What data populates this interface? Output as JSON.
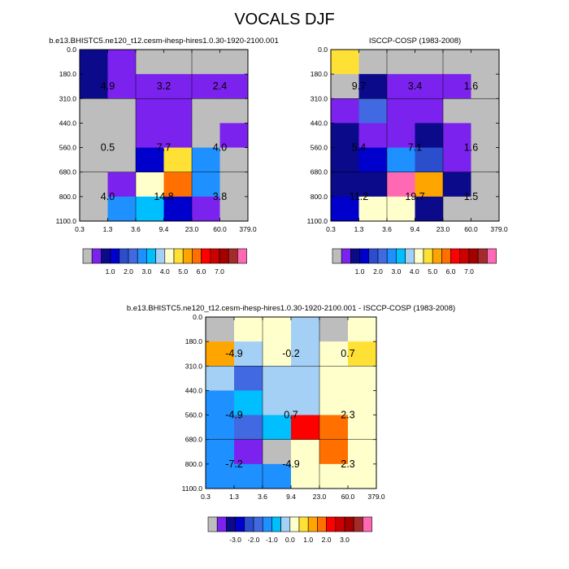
{
  "title": "VOCALS DJF",
  "colors": {
    "abs": [
      "#bdbdbd",
      "#7b22ee",
      "#0a0a8a",
      "#0000cd",
      "#2b4fcc",
      "#4169e1",
      "#1e90ff",
      "#00bfff",
      "#a4d0f5",
      "#ffffcc",
      "#ffe135",
      "#ffa500",
      "#ff7000",
      "#ff0000",
      "#cd0000",
      "#a50000",
      "#a52a2a",
      "#ff69b4"
    ],
    "diff": [
      "#bdbdbd",
      "#7b22ee",
      "#0a0a8a",
      "#0000cd",
      "#2b4fcc",
      "#4169e1",
      "#1e90ff",
      "#00bfff",
      "#a4d0f5",
      "#ffffcc",
      "#ffe135",
      "#ffa500",
      "#ff7000",
      "#ff0000",
      "#cd0000",
      "#a50000",
      "#a52a2a",
      "#ff69b4"
    ]
  },
  "chart_data": [
    {
      "type": "heatmap",
      "title": "b.e13.BHISTC5.ne120_t12.cesm-ihesp-hires1.0.30-1920-2100.001",
      "x_ticks": [
        "0.3",
        "1.3",
        "3.6",
        "9.4",
        "23.0",
        "60.0",
        "379.0"
      ],
      "y_ticks": [
        "0.0",
        "180.0",
        "310.0",
        "440.0",
        "560.0",
        "680.0",
        "800.0",
        "1100.0"
      ],
      "cells": [
        [
          2,
          1,
          0,
          0,
          0,
          0
        ],
        [
          2,
          1,
          1,
          1,
          1,
          1
        ],
        [
          0,
          0,
          1,
          1,
          0,
          0
        ],
        [
          0,
          0,
          1,
          1,
          0,
          1
        ],
        [
          0,
          0,
          3,
          10,
          6,
          0
        ],
        [
          0,
          1,
          9,
          12,
          6,
          0
        ],
        [
          0,
          6,
          7,
          3,
          1,
          0
        ]
      ],
      "box_labels": [
        [
          "4.9",
          "3.2",
          "2.4"
        ],
        [
          "0.5",
          "7.7",
          "4.0"
        ],
        [
          "4.0",
          "14.8",
          "3.8"
        ]
      ],
      "colorbar": "abs"
    },
    {
      "type": "heatmap",
      "title": "ISCCP-COSP (1983-2008)",
      "x_ticks": [
        "0.3",
        "1.3",
        "3.6",
        "9.4",
        "23.0",
        "60.0",
        "379.0"
      ],
      "y_ticks": [
        "0.0",
        "180.0",
        "310.0",
        "440.0",
        "560.0",
        "680.0",
        "800.0",
        "1100.0"
      ],
      "cells": [
        [
          10,
          0,
          0,
          0,
          0,
          0
        ],
        [
          0,
          2,
          1,
          1,
          1,
          0
        ],
        [
          1,
          5,
          1,
          1,
          0,
          0
        ],
        [
          2,
          1,
          1,
          2,
          1,
          0
        ],
        [
          2,
          3,
          6,
          4,
          1,
          0
        ],
        [
          2,
          2,
          17,
          11,
          2,
          0
        ],
        [
          3,
          9,
          9,
          2,
          0,
          0
        ]
      ],
      "box_labels": [
        [
          "9.7",
          "3.4",
          "1.6"
        ],
        [
          "5.4",
          "7.1",
          "1.6"
        ],
        [
          "11.2",
          "19.7",
          "1.5"
        ]
      ],
      "colorbar": "abs"
    },
    {
      "type": "heatmap",
      "title": "b.e13.BHISTC5.ne120_t12.cesm-ihesp-hires1.0.30-1920-2100.001 - ISCCP-COSP (1983-2008)",
      "x_ticks": [
        "0.3",
        "1.3",
        "3.6",
        "9.4",
        "23.0",
        "60.0",
        "379.0"
      ],
      "y_ticks": [
        "0.0",
        "180.0",
        "310.0",
        "440.0",
        "560.0",
        "680.0",
        "800.0",
        "1100.0"
      ],
      "cells": [
        [
          0,
          9,
          9,
          8,
          0,
          9
        ],
        [
          11,
          8,
          9,
          8,
          9,
          10
        ],
        [
          8,
          5,
          8,
          8,
          9,
          9
        ],
        [
          6,
          7,
          8,
          8,
          9,
          9
        ],
        [
          6,
          5,
          7,
          13,
          12,
          9
        ],
        [
          6,
          1,
          0,
          9,
          12,
          9
        ],
        [
          6,
          6,
          6,
          9,
          9,
          9
        ]
      ],
      "box_labels": [
        [
          "-4.9",
          "-0.2",
          "0.7"
        ],
        [
          "-4.9",
          "0.7",
          "2.3"
        ],
        [
          "-7.2",
          "-4.9",
          "2.3"
        ]
      ],
      "colorbar": "diff"
    }
  ],
  "colorbars": {
    "abs": {
      "labels": [
        "1.0",
        "2.0",
        "3.0",
        "4.0",
        "5.0",
        "6.0",
        "7.0"
      ]
    },
    "diff": {
      "labels": [
        "-3.0",
        "-2.0",
        "-1.0",
        "0.0",
        "1.0",
        "2.0",
        "3.0"
      ]
    }
  }
}
